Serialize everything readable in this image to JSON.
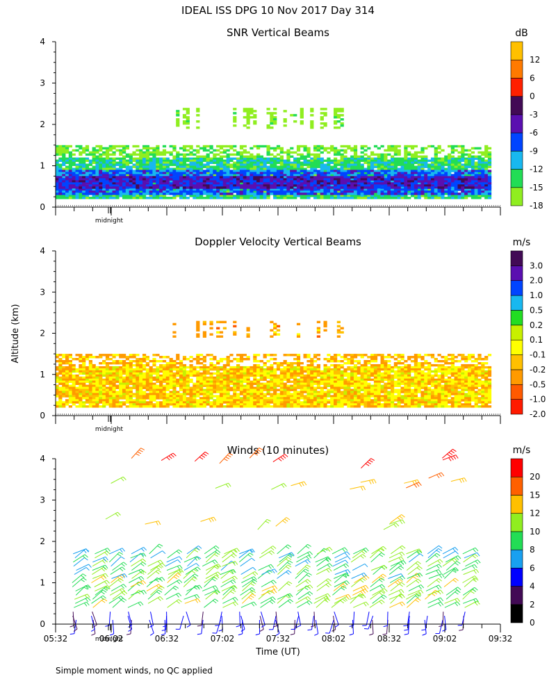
{
  "figure": {
    "title": "IDEAL ISS DPG  10 Nov 2017 Day 314",
    "ylabel": "Altitude (km)",
    "xlabel": "Time (UT)",
    "footnote": "Simple moment winds, no QC applied"
  },
  "chart_data": [
    {
      "type": "heatmap",
      "title": "SNR Vertical Beams",
      "xlim_hours": [
        5.533,
        9.533
      ],
      "ylim": [
        0,
        4
      ],
      "yticks": [
        0,
        1,
        2,
        3,
        4
      ],
      "midnight_label": "midnight",
      "colorbar": {
        "unit": "dB",
        "labels": [
          "-18",
          "-15",
          "-12",
          "-9",
          "-6",
          "-3",
          "0",
          "6",
          "12"
        ],
        "colors": [
          "#90ee20",
          "#22dd55",
          "#18b8f0",
          "#0044ff",
          "#5a0fb0",
          "#420a55",
          "#ff2000",
          "#ff7a00",
          "#ffc000"
        ]
      },
      "layers": [
        {
          "bottom": 0.2,
          "top": 1.2,
          "value": -13
        },
        {
          "bottom": 0.3,
          "top": 0.9,
          "value": -8
        },
        {
          "bottom": 0.45,
          "top": 0.75,
          "value": -5
        },
        {
          "bottom": 1.2,
          "top": 1.5,
          "value": -16
        },
        {
          "bottom": 1.9,
          "top": 2.4,
          "value": -17
        }
      ]
    },
    {
      "type": "heatmap",
      "title": "Doppler Velocity Vertical Beams",
      "xlim_hours": [
        5.533,
        9.533
      ],
      "ylim": [
        0,
        4
      ],
      "yticks": [
        0,
        1,
        2,
        3,
        4
      ],
      "midnight_label": "midnight",
      "colorbar": {
        "unit": "m/s",
        "labels": [
          "-2.0",
          "-1.0",
          "-0.5",
          "-0.2",
          "-0.1",
          "0.1",
          "0.2",
          "0.5",
          "1.0",
          "2.0",
          "3.0"
        ],
        "colors": [
          "#ff1a00",
          "#ff5a00",
          "#ff9a00",
          "#ffc000",
          "#ffff00",
          "#c8f000",
          "#22dd22",
          "#18b8f0",
          "#0044ff",
          "#5a0fb0",
          "#420a55"
        ]
      },
      "layers": [
        {
          "bottom": 0.2,
          "top": 1.2,
          "value": -0.1
        },
        {
          "bottom": 1.2,
          "top": 1.5,
          "value": -0.2
        },
        {
          "bottom": 1.9,
          "top": 2.3,
          "value": -0.3
        }
      ]
    },
    {
      "type": "wind-barbs",
      "title": "Winds (10 minutes)",
      "xlim_hours": [
        5.533,
        9.533
      ],
      "ylim": [
        0,
        4
      ],
      "yticks": [
        0,
        1,
        2,
        3,
        4
      ],
      "xticks": [
        "05:32",
        "06:02",
        "06:32",
        "07:02",
        "07:32",
        "08:02",
        "08:32",
        "09:02",
        "09:32"
      ],
      "midnight_label": "midnight",
      "colorbar": {
        "unit": "m/s",
        "labels": [
          "0",
          "2",
          "4",
          "6",
          "8",
          "10",
          "12",
          "15",
          "20"
        ],
        "colors": [
          "#000000",
          "#420a55",
          "#0000ff",
          "#18a0f0",
          "#22dd55",
          "#90ee20",
          "#ffc000",
          "#ff6000",
          "#ff0000"
        ]
      },
      "profile_times_hours": [
        5.7,
        5.87,
        6.03,
        6.2,
        6.37,
        6.53,
        6.7,
        6.87,
        7.03,
        7.2,
        7.37,
        7.53,
        7.7,
        7.87,
        8.03,
        8.2,
        8.37,
        8.53,
        8.7,
        8.87,
        9.03,
        9.2
      ],
      "low_range_km": [
        0.1,
        1.8
      ],
      "upper_layers": [
        {
          "height": 2.4,
          "speed": 12
        },
        {
          "height": 3.4,
          "speed": 14
        },
        {
          "height": 3.9,
          "speed": 20
        }
      ]
    }
  ]
}
